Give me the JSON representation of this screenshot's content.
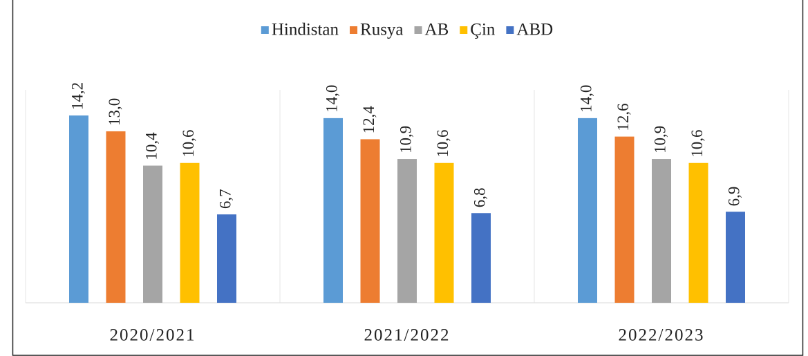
{
  "chart_data": {
    "type": "bar",
    "categories": [
      "2020/2021",
      "2021/2022",
      "2022/2023"
    ],
    "series": [
      {
        "name": "Hindistan",
        "color": "#5b9bd5",
        "values": [
          14.2,
          14.0,
          14.0
        ],
        "value_labels": [
          "14,2",
          "14,0",
          "14,0"
        ]
      },
      {
        "name": "Rusya",
        "color": "#ed7d31",
        "values": [
          13.0,
          12.4,
          12.6
        ],
        "value_labels": [
          "13,0",
          "12,4",
          "12,6"
        ]
      },
      {
        "name": "AB",
        "color": "#a5a5a5",
        "values": [
          10.4,
          10.9,
          10.9
        ],
        "value_labels": [
          "10,4",
          "10,9",
          "10,9"
        ]
      },
      {
        "name": "Çin",
        "color": "#ffc000",
        "values": [
          10.6,
          10.6,
          10.6
        ],
        "value_labels": [
          "10,6",
          "10,6",
          "10,6"
        ]
      },
      {
        "name": "ABD",
        "color": "#4472c4",
        "values": [
          6.7,
          6.8,
          6.9
        ],
        "value_labels": [
          "6,7",
          "6,8",
          "6,9"
        ]
      }
    ],
    "legend": "top"
  }
}
